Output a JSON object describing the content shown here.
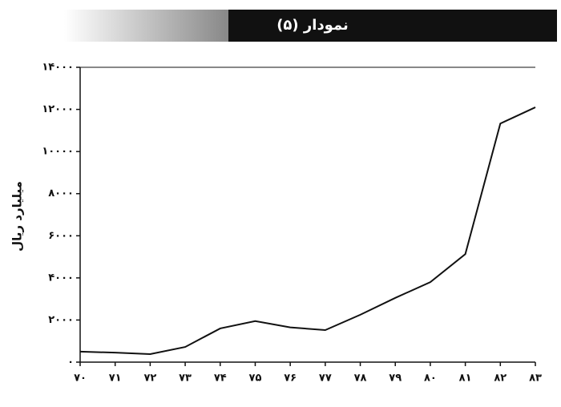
{
  "chart_data": {
    "type": "line",
    "title": "نمودار (۵)",
    "y_label": "میلیارد ریال",
    "categories": [
      "۷۰",
      "۷۱",
      "۷۲",
      "۷۳",
      "۷۴",
      "۷۵",
      "۷۶",
      "۷۷",
      "۷۸",
      "۷۹",
      "۸۰",
      "۸۱",
      "۸۲",
      "۸۳"
    ],
    "values": [
      500,
      450,
      380,
      720,
      1600,
      1950,
      1650,
      1520,
      2250,
      3050,
      3800,
      5130,
      11330,
      12100
    ],
    "color": "#111111",
    "ylim": [
      0,
      14000
    ],
    "yticks": [
      {
        "value": 0,
        "label": "۰"
      },
      {
        "value": 2000,
        "label": "۲۰۰۰"
      },
      {
        "value": 4000,
        "label": "۴۰۰۰"
      },
      {
        "value": 6000,
        "label": "۶۰۰۰"
      },
      {
        "value": 8000,
        "label": "۸۰۰۰"
      },
      {
        "value": 10000,
        "label": "۱۰۰۰۰"
      },
      {
        "value": 12000,
        "label": "۱۲۰۰۰"
      },
      {
        "value": 14000,
        "label": "۱۴۰۰۰"
      }
    ],
    "grid": false
  }
}
